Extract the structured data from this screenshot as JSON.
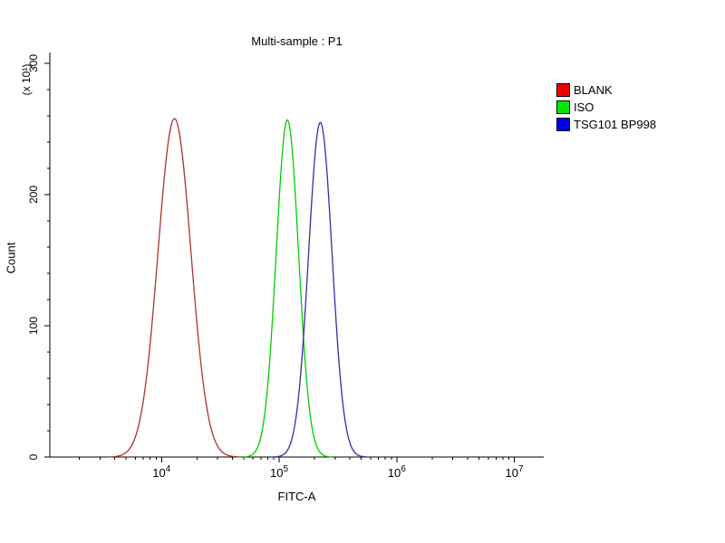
{
  "chart_data": {
    "type": "line",
    "title": "Multi-sample : P1",
    "xlabel": "FITC-A",
    "ylabel": "Count",
    "y_unit_label": "(x 10¹)",
    "x_scale": "log10",
    "xlim_log10": [
      3.05,
      7.25
    ],
    "ylim": [
      0,
      300
    ],
    "x_ticks_log10": [
      4,
      5,
      6,
      7
    ],
    "y_ticks": [
      0,
      100,
      200,
      300
    ],
    "y_minor_step": 20,
    "grid": false,
    "legend_position": "right-outside",
    "series": [
      {
        "name": "BLANK",
        "legend_color": "#f20000",
        "line_color": "#a93434",
        "peak_log10_x": 4.11,
        "sigma_log10": 0.14,
        "peak_count": 258,
        "points_log10x_count": [
          [
            3.66,
            1
          ],
          [
            3.71,
            4
          ],
          [
            3.76,
            11
          ],
          [
            3.81,
            26
          ],
          [
            3.86,
            52
          ],
          [
            3.91,
            93
          ],
          [
            3.96,
            145
          ],
          [
            4.01,
            200
          ],
          [
            4.06,
            242
          ],
          [
            4.11,
            258
          ],
          [
            4.16,
            242
          ],
          [
            4.21,
            200
          ],
          [
            4.26,
            145
          ],
          [
            4.31,
            93
          ],
          [
            4.36,
            52
          ],
          [
            4.41,
            26
          ],
          [
            4.46,
            11
          ],
          [
            4.51,
            4
          ],
          [
            4.56,
            1
          ]
        ]
      },
      {
        "name": "ISO",
        "legend_color": "#00e800",
        "line_color": "#00cc00",
        "peak_log10_x": 5.07,
        "sigma_log10": 0.095,
        "peak_count": 257,
        "points_log10x_count": [
          [
            4.77,
            2
          ],
          [
            4.82,
            8
          ],
          [
            4.87,
            28
          ],
          [
            4.92,
            74
          ],
          [
            4.97,
            148
          ],
          [
            5.02,
            224
          ],
          [
            5.07,
            257
          ],
          [
            5.12,
            224
          ],
          [
            5.17,
            148
          ],
          [
            5.22,
            74
          ],
          [
            5.27,
            28
          ],
          [
            5.32,
            8
          ],
          [
            5.37,
            2
          ]
        ]
      },
      {
        "name": "TSG101 BP998",
        "legend_color": "#0000f0",
        "line_color": "#3030a8",
        "peak_log10_x": 5.35,
        "sigma_log10": 0.1,
        "peak_count": 255,
        "points_log10x_count": [
          [
            5.0,
            1
          ],
          [
            5.05,
            3
          ],
          [
            5.1,
            11
          ],
          [
            5.15,
            35
          ],
          [
            5.2,
            83
          ],
          [
            5.25,
            155
          ],
          [
            5.3,
            225
          ],
          [
            5.35,
            255
          ],
          [
            5.4,
            225
          ],
          [
            5.45,
            155
          ],
          [
            5.5,
            83
          ],
          [
            5.55,
            35
          ],
          [
            5.6,
            11
          ],
          [
            5.65,
            3
          ],
          [
            5.7,
            1
          ]
        ]
      }
    ]
  }
}
